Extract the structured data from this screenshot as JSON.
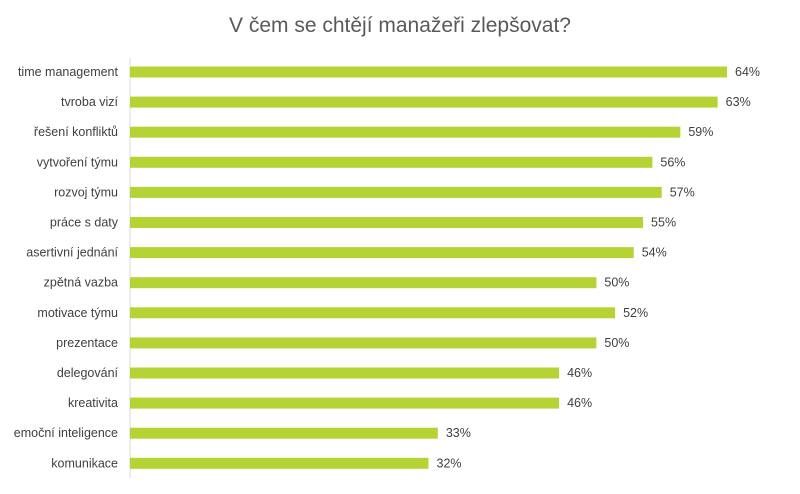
{
  "chart_data": {
    "type": "bar",
    "orientation": "horizontal",
    "title": "V čem se chtějí manažeři zlepšovat?",
    "xlabel": "",
    "ylabel": "",
    "xlim": [
      0,
      70
    ],
    "grid": false,
    "legend": "none",
    "bar_color": "#b5d334",
    "categories": [
      "time management",
      "tvroba vizí",
      "řešení konfliktů",
      "vytvoření týmu",
      "rozvoj týmu",
      "práce s daty",
      "asertivní jednání",
      "zpětná vazba",
      "motivace týmu",
      "prezentace",
      "delegování",
      "kreativita",
      "emoční inteligence",
      "komunikace"
    ],
    "values": [
      64,
      63,
      59,
      56,
      57,
      55,
      54,
      50,
      52,
      50,
      46,
      46,
      33,
      32
    ],
    "value_labels": [
      "64%",
      "63%",
      "59%",
      "56%",
      "57%",
      "55%",
      "54%",
      "50%",
      "52%",
      "50%",
      "46%",
      "46%",
      "33%",
      "32%"
    ]
  }
}
